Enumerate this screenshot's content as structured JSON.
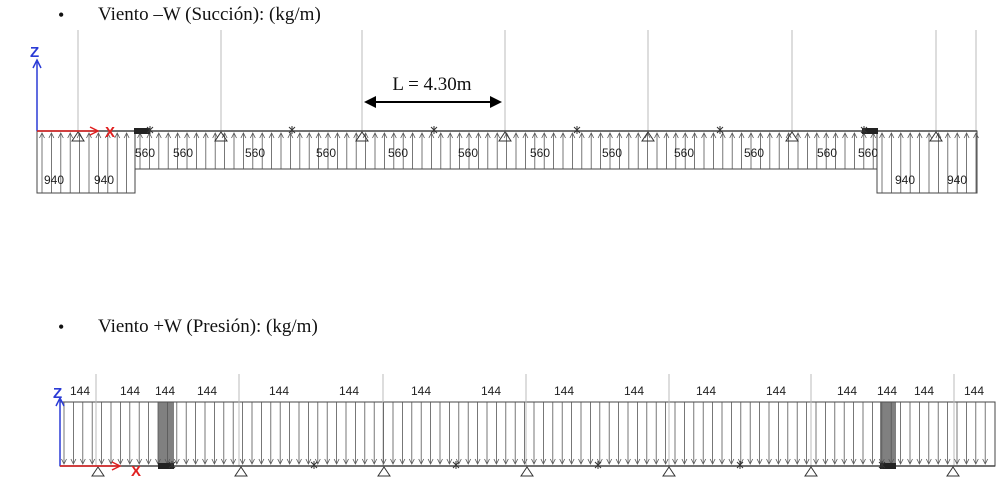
{
  "headings": {
    "top": "Viento –W (Succión): (kg/m)",
    "bottom": "Viento +W (Presión): (kg/m)",
    "bullet": "•"
  },
  "top_diagram": {
    "dimension_label": "L = 4.30m",
    "axis_z": "Z",
    "axis_x": "X",
    "load_labels": [
      "940",
      "940",
      "560",
      "560",
      "560",
      "560",
      "560",
      "560",
      "560",
      "560",
      "560",
      "560",
      "560",
      "560",
      "940",
      "940"
    ],
    "load_values_kg_m": [
      940,
      940,
      560,
      560,
      560,
      560,
      560,
      560,
      560,
      560,
      560,
      560,
      560,
      560,
      940,
      940
    ]
  },
  "bottom_diagram": {
    "axis_z": "Z",
    "axis_x": "X",
    "load_labels": [
      "144",
      "144",
      "144",
      "144",
      "144",
      "144",
      "144",
      "144",
      "144",
      "144",
      "144",
      "144",
      "144",
      "144",
      "144",
      "144"
    ],
    "load_values_kg_m": [
      144,
      144,
      144,
      144,
      144,
      144,
      144,
      144,
      144,
      144,
      144,
      144,
      144,
      144,
      144,
      144
    ]
  },
  "colors": {
    "axis_z": "#2a3bd6",
    "axis_x": "#e02020",
    "line": "#555555"
  }
}
